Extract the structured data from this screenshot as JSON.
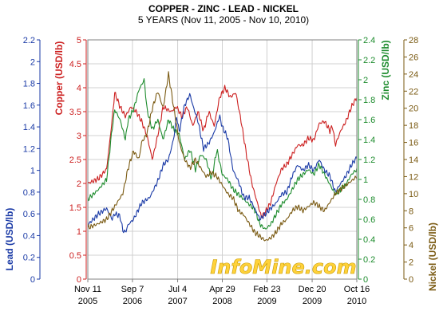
{
  "chart_data": {
    "type": "line",
    "title": "COPPER - ZINC - LEAD - NICKEL",
    "subtitle": "5 YEARS (Nov 11, 2005 - Nov 10, 2010)",
    "watermark": "InfoMine.com",
    "x_ticks": [
      {
        "line1": "Nov 11",
        "line2": "2005",
        "t": 0.0
      },
      {
        "line1": "Sep 7",
        "line2": "2006",
        "t": 0.166
      },
      {
        "line1": "Jul 4",
        "line2": "2007",
        "t": 0.334
      },
      {
        "line1": "Apr 29",
        "line2": "2008",
        "t": 0.5
      },
      {
        "line1": "Feb 23",
        "line2": "2009",
        "t": 0.666
      },
      {
        "line1": "Dec 20",
        "line2": "2009",
        "t": 0.834
      },
      {
        "line1": "Oct 16",
        "line2": "2010",
        "t": 1.0
      }
    ],
    "axes": {
      "lead": {
        "label": "Lead (USD/lb)",
        "min": 0,
        "max": 2.2,
        "ticks": [
          "0",
          "0.2",
          "0.4",
          "0.6",
          "0.8",
          "1",
          "1.2",
          "1.4",
          "1.6",
          "1.8",
          "2",
          "2.2"
        ],
        "color": "#1a3aa6"
      },
      "copper": {
        "label": "Copper (USD/lb)",
        "min": 0,
        "max": 5,
        "ticks": [
          "0",
          "0.5",
          "1",
          "1.5",
          "2",
          "2.5",
          "3",
          "3.5",
          "4",
          "4.5",
          "5"
        ],
        "color": "#cc1f1f"
      },
      "zinc": {
        "label": "Zinc (USD/lb)",
        "min": 0,
        "max": 2.4,
        "ticks": [
          "0",
          "0.2",
          "0.4",
          "0.6",
          "0.8",
          "1",
          "1.2",
          "1.4",
          "1.6",
          "1.8",
          "2",
          "2.2",
          "2.4"
        ],
        "color": "#1e8c2e"
      },
      "nickel": {
        "label": "Nickel (USD/lb)",
        "min": 0,
        "max": 28,
        "ticks": [
          "0",
          "2",
          "4",
          "6",
          "8",
          "10",
          "12",
          "14",
          "16",
          "18",
          "20",
          "22",
          "24",
          "26",
          "28"
        ],
        "color": "#7a5a12"
      }
    },
    "grid": true,
    "series": [
      {
        "axis": "copper",
        "color": "#cc1f1f",
        "points": [
          [
            0,
            2.0
          ],
          [
            0.04,
            2.1
          ],
          [
            0.07,
            2.3
          ],
          [
            0.09,
            3.3
          ],
          [
            0.1,
            3.9
          ],
          [
            0.12,
            3.6
          ],
          [
            0.14,
            3.4
          ],
          [
            0.16,
            3.6
          ],
          [
            0.18,
            3.5
          ],
          [
            0.2,
            3.3
          ],
          [
            0.22,
            3.0
          ],
          [
            0.24,
            2.5
          ],
          [
            0.26,
            3.0
          ],
          [
            0.28,
            3.6
          ],
          [
            0.31,
            3.5
          ],
          [
            0.33,
            3.6
          ],
          [
            0.35,
            3.4
          ],
          [
            0.37,
            3.6
          ],
          [
            0.39,
            3.2
          ],
          [
            0.41,
            3.5
          ],
          [
            0.43,
            3.1
          ],
          [
            0.45,
            3.5
          ],
          [
            0.47,
            3.2
          ],
          [
            0.49,
            3.8
          ],
          [
            0.51,
            4.0
          ],
          [
            0.53,
            3.8
          ],
          [
            0.55,
            3.9
          ],
          [
            0.57,
            3.3
          ],
          [
            0.59,
            2.6
          ],
          [
            0.61,
            2.0
          ],
          [
            0.63,
            1.6
          ],
          [
            0.645,
            1.3
          ],
          [
            0.66,
            1.4
          ],
          [
            0.68,
            1.6
          ],
          [
            0.7,
            2.0
          ],
          [
            0.72,
            2.3
          ],
          [
            0.74,
            2.4
          ],
          [
            0.76,
            2.6
          ],
          [
            0.78,
            2.8
          ],
          [
            0.8,
            2.8
          ],
          [
            0.82,
            2.95
          ],
          [
            0.84,
            2.9
          ],
          [
            0.86,
            3.25
          ],
          [
            0.88,
            3.3
          ],
          [
            0.9,
            3.1
          ],
          [
            0.91,
            3.2
          ],
          [
            0.92,
            2.8
          ],
          [
            0.94,
            3.1
          ],
          [
            0.96,
            3.3
          ],
          [
            0.98,
            3.6
          ],
          [
            1.0,
            3.8
          ]
        ]
      },
      {
        "axis": "zinc",
        "color": "#1e8c2e",
        "points": [
          [
            0,
            0.8
          ],
          [
            0.04,
            0.9
          ],
          [
            0.07,
            1.0
          ],
          [
            0.09,
            1.5
          ],
          [
            0.1,
            1.7
          ],
          [
            0.12,
            1.6
          ],
          [
            0.14,
            1.4
          ],
          [
            0.15,
            1.6
          ],
          [
            0.17,
            1.7
          ],
          [
            0.19,
            1.9
          ],
          [
            0.2,
            1.95
          ],
          [
            0.21,
            2.0
          ],
          [
            0.22,
            1.7
          ],
          [
            0.24,
            1.5
          ],
          [
            0.26,
            1.6
          ],
          [
            0.28,
            1.4
          ],
          [
            0.3,
            1.6
          ],
          [
            0.32,
            1.5
          ],
          [
            0.34,
            1.45
          ],
          [
            0.36,
            1.2
          ],
          [
            0.38,
            1.3
          ],
          [
            0.4,
            1.1
          ],
          [
            0.42,
            1.25
          ],
          [
            0.44,
            1.2
          ],
          [
            0.46,
            1.0
          ],
          [
            0.48,
            1.3
          ],
          [
            0.5,
            1.05
          ],
          [
            0.52,
            1.0
          ],
          [
            0.54,
            0.9
          ],
          [
            0.56,
            0.85
          ],
          [
            0.58,
            0.8
          ],
          [
            0.6,
            0.75
          ],
          [
            0.62,
            0.7
          ],
          [
            0.64,
            0.55
          ],
          [
            0.66,
            0.5
          ],
          [
            0.68,
            0.55
          ],
          [
            0.7,
            0.65
          ],
          [
            0.72,
            0.75
          ],
          [
            0.74,
            0.8
          ],
          [
            0.76,
            0.9
          ],
          [
            0.78,
            1.0
          ],
          [
            0.8,
            1.05
          ],
          [
            0.82,
            1.1
          ],
          [
            0.84,
            1.05
          ],
          [
            0.86,
            1.15
          ],
          [
            0.88,
            1.05
          ],
          [
            0.9,
            0.95
          ],
          [
            0.92,
            0.85
          ],
          [
            0.94,
            0.9
          ],
          [
            0.96,
            0.95
          ],
          [
            0.98,
            1.05
          ],
          [
            1.0,
            1.1
          ]
        ]
      },
      {
        "axis": "lead",
        "color": "#1a3aa6",
        "points": [
          [
            0,
            0.5
          ],
          [
            0.04,
            0.6
          ],
          [
            0.07,
            0.65
          ],
          [
            0.09,
            0.55
          ],
          [
            0.1,
            0.6
          ],
          [
            0.12,
            0.58
          ],
          [
            0.13,
            0.45
          ],
          [
            0.14,
            0.43
          ],
          [
            0.15,
            0.5
          ],
          [
            0.17,
            0.55
          ],
          [
            0.2,
            0.7
          ],
          [
            0.23,
            0.75
          ],
          [
            0.26,
            0.9
          ],
          [
            0.28,
            1.05
          ],
          [
            0.3,
            1.1
          ],
          [
            0.32,
            1.3
          ],
          [
            0.33,
            1.5
          ],
          [
            0.34,
            1.35
          ],
          [
            0.36,
            1.6
          ],
          [
            0.38,
            1.7
          ],
          [
            0.39,
            1.6
          ],
          [
            0.41,
            1.45
          ],
          [
            0.43,
            1.2
          ],
          [
            0.45,
            1.25
          ],
          [
            0.47,
            1.35
          ],
          [
            0.49,
            1.5
          ],
          [
            0.5,
            1.4
          ],
          [
            0.52,
            1.3
          ],
          [
            0.54,
            1.0
          ],
          [
            0.56,
            0.9
          ],
          [
            0.58,
            0.75
          ],
          [
            0.6,
            0.75
          ],
          [
            0.62,
            0.65
          ],
          [
            0.64,
            0.55
          ],
          [
            0.66,
            0.6
          ],
          [
            0.68,
            0.65
          ],
          [
            0.7,
            0.7
          ],
          [
            0.72,
            0.78
          ],
          [
            0.74,
            0.8
          ],
          [
            0.76,
            0.95
          ],
          [
            0.78,
            1.05
          ],
          [
            0.8,
            1.0
          ],
          [
            0.82,
            1.05
          ],
          [
            0.84,
            1.0
          ],
          [
            0.86,
            1.1
          ],
          [
            0.88,
            1.0
          ],
          [
            0.9,
            0.95
          ],
          [
            0.92,
            0.8
          ],
          [
            0.94,
            0.88
          ],
          [
            0.96,
            0.95
          ],
          [
            0.98,
            1.05
          ],
          [
            1.0,
            1.12
          ]
        ]
      },
      {
        "axis": "nickel",
        "color": "#7a5a12",
        "points": [
          [
            0,
            6.0
          ],
          [
            0.04,
            6.5
          ],
          [
            0.07,
            7.0
          ],
          [
            0.09,
            8.0
          ],
          [
            0.11,
            9.0
          ],
          [
            0.13,
            10.0
          ],
          [
            0.15,
            13.0
          ],
          [
            0.17,
            15.0
          ],
          [
            0.19,
            14.0
          ],
          [
            0.2,
            16.0
          ],
          [
            0.22,
            17.0
          ],
          [
            0.24,
            20.0
          ],
          [
            0.26,
            22.0
          ],
          [
            0.28,
            20.0
          ],
          [
            0.3,
            24.0
          ],
          [
            0.32,
            20.0
          ],
          [
            0.34,
            16.0
          ],
          [
            0.36,
            14.0
          ],
          [
            0.38,
            13.0
          ],
          [
            0.4,
            14.0
          ],
          [
            0.42,
            13.0
          ],
          [
            0.44,
            12.0
          ],
          [
            0.46,
            12.5
          ],
          [
            0.48,
            12.0
          ],
          [
            0.5,
            11.0
          ],
          [
            0.52,
            10.0
          ],
          [
            0.54,
            9.5
          ],
          [
            0.56,
            8.0
          ],
          [
            0.58,
            7.5
          ],
          [
            0.6,
            6.5
          ],
          [
            0.62,
            5.5
          ],
          [
            0.64,
            5.0
          ],
          [
            0.66,
            4.5
          ],
          [
            0.68,
            4.8
          ],
          [
            0.7,
            5.5
          ],
          [
            0.72,
            6.5
          ],
          [
            0.74,
            7.0
          ],
          [
            0.76,
            8.0
          ],
          [
            0.78,
            8.5
          ],
          [
            0.8,
            8.0
          ],
          [
            0.82,
            8.5
          ],
          [
            0.84,
            9.0
          ],
          [
            0.86,
            8.5
          ],
          [
            0.88,
            8.0
          ],
          [
            0.9,
            9.0
          ],
          [
            0.92,
            10.0
          ],
          [
            0.94,
            10.5
          ],
          [
            0.96,
            11.0
          ],
          [
            0.98,
            11.5
          ],
          [
            1.0,
            12.0
          ]
        ]
      }
    ]
  }
}
